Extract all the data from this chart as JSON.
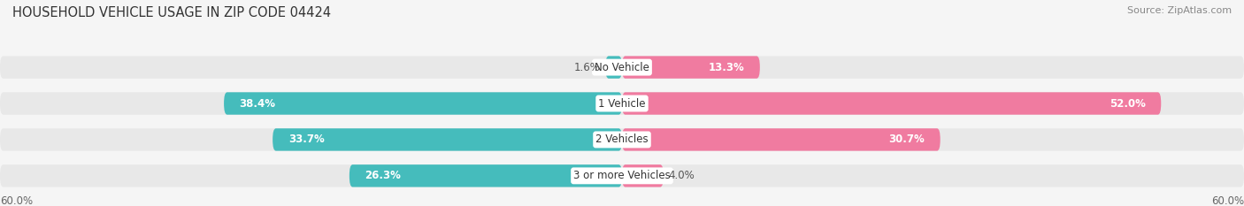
{
  "title": "HOUSEHOLD VEHICLE USAGE IN ZIP CODE 04424",
  "source": "Source: ZipAtlas.com",
  "categories": [
    "No Vehicle",
    "1 Vehicle",
    "2 Vehicles",
    "3 or more Vehicles"
  ],
  "owner_values": [
    1.6,
    38.4,
    33.7,
    26.3
  ],
  "renter_values": [
    13.3,
    52.0,
    30.7,
    4.0
  ],
  "owner_color": "#45BCBC",
  "renter_color": "#F07BA0",
  "axis_max": 60.0,
  "axis_label": "60.0%",
  "background_color": "#f5f5f5",
  "row_bg_color": "#e8e8e8",
  "title_fontsize": 10.5,
  "source_fontsize": 8,
  "label_fontsize": 8.5,
  "category_fontsize": 8.5
}
